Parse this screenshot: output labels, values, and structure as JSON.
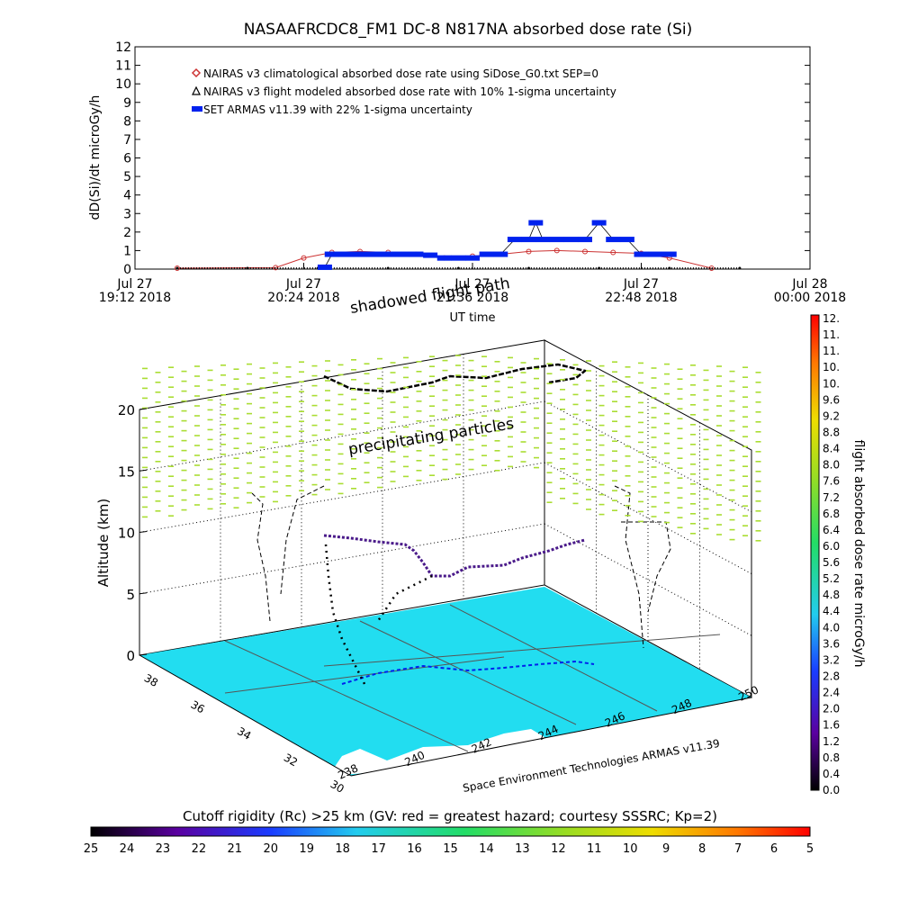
{
  "title": "NASAAFRCDC8_FM1 DC-8    N817NA absorbed dose rate (Si)",
  "chart_data": [
    {
      "type": "scatter",
      "ylabel": "dD(Si)/dt microGy/h",
      "xlabel": "UT time",
      "ylim": [
        0,
        12
      ],
      "yticks": [
        "0",
        "1",
        "2",
        "3",
        "4",
        "5",
        "6",
        "7",
        "8",
        "9",
        "10",
        "11",
        "12"
      ],
      "xticks": [
        {
          "line1": "Jul 27",
          "line2": "19:12 2018"
        },
        {
          "line1": "Jul 27",
          "line2": "20:24 2018"
        },
        {
          "line1": "Jul 27",
          "line2": "21:36 2018"
        },
        {
          "line1": "Jul 27",
          "line2": "22:48 2018"
        },
        {
          "line1": "Jul 28",
          "line2": "00:00 2018"
        }
      ],
      "legend": [
        {
          "name": "NAIRAS v3 climatological absorbed dose rate using SiDose_G0.txt SEP=0",
          "color": "#cc3333",
          "marker": "diamond"
        },
        {
          "name": "NAIRAS v3 flight modeled absorbed dose rate with 10% 1-sigma uncertainty",
          "color": "#000000",
          "marker": "triangle"
        },
        {
          "name": "SET ARMAS v11.39 with 22% 1-sigma uncertainty",
          "color": "#0022ee",
          "marker": "dot"
        }
      ],
      "legend_position": "top-left",
      "series": [
        {
          "id": "climatological",
          "x_hours": [
            19.5,
            20.2,
            20.4,
            20.6,
            20.8,
            21.0,
            21.2,
            21.4,
            21.6,
            21.8,
            22.0,
            22.2,
            22.4,
            22.6,
            22.8,
            23.0,
            23.3
          ],
          "values": [
            0.05,
            0.08,
            0.6,
            0.9,
            0.95,
            0.9,
            0.8,
            0.6,
            0.7,
            0.8,
            0.95,
            1.0,
            0.95,
            0.9,
            0.85,
            0.6,
            0.05
          ]
        },
        {
          "id": "flight-modeled",
          "x_hours": [
            19.5,
            20.0,
            20.5,
            21.0,
            21.5,
            22.0,
            22.5,
            23.0,
            23.5
          ],
          "values": [
            0.0,
            0.0,
            0.0,
            0.0,
            0.0,
            0.0,
            0.0,
            0.0,
            0.0
          ]
        },
        {
          "id": "armas",
          "x_hours": [
            20.55,
            20.6,
            20.7,
            20.8,
            20.9,
            21.0,
            21.1,
            21.2,
            21.3,
            21.4,
            21.5,
            21.6,
            21.7,
            21.8,
            21.9,
            22.0,
            22.05,
            22.1,
            22.2,
            22.3,
            22.4,
            22.5,
            22.6,
            22.7,
            22.8,
            22.9,
            23.0
          ],
          "values": [
            0.1,
            0.8,
            0.8,
            0.8,
            0.8,
            0.8,
            0.8,
            0.8,
            0.75,
            0.6,
            0.6,
            0.6,
            0.8,
            0.8,
            1.6,
            1.6,
            2.5,
            1.6,
            1.6,
            1.6,
            1.6,
            2.5,
            1.6,
            1.6,
            0.8,
            0.8,
            0.8
          ]
        }
      ]
    },
    {
      "type": "scatter",
      "zlabel": "Altitude (km)",
      "zticks": [
        "0",
        "5",
        "10",
        "15",
        "20"
      ],
      "lat_ticks": [
        "38",
        "36",
        "34",
        "32",
        "30"
      ],
      "lon_ticks": [
        "238",
        "240",
        "242",
        "244",
        "246",
        "248",
        "250"
      ],
      "annotations": [
        "shadowed flight path",
        "precipitating particles"
      ],
      "credit": "Space Environment Technologies ARMAS v11.39"
    }
  ],
  "right_colorbar": {
    "label": "flight absorbed dose rate microGy/h",
    "ticks": [
      "0.0",
      "0.4",
      "0.8",
      "1.2",
      "1.6",
      "2.0",
      "2.4",
      "2.8",
      "3.2",
      "3.6",
      "4.0",
      "4.4",
      "4.8",
      "5.2",
      "5.6",
      "6.0",
      "6.4",
      "6.8",
      "7.2",
      "7.6",
      "8.0",
      "8.4",
      "8.8",
      "9.2",
      "9.6",
      "10.",
      "10.",
      "11.",
      "11.",
      "12."
    ]
  },
  "bottom_colorbar": {
    "title": "Cutoff rigidity (Rc) >25 km (GV: red = greatest hazard; courtesy SSSRC; Kp=2)",
    "ticks": [
      "25",
      "24",
      "23",
      "22",
      "21",
      "20",
      "19",
      "18",
      "17",
      "16",
      "15",
      "14",
      "13",
      "12",
      "11",
      "10",
      "9",
      "8",
      "7",
      "6",
      "5"
    ]
  },
  "colors": {
    "map_fill": "#22ddf0",
    "precip": "#aadd33",
    "armas_blue": "#0022ee",
    "clim_red": "#cc3333"
  }
}
